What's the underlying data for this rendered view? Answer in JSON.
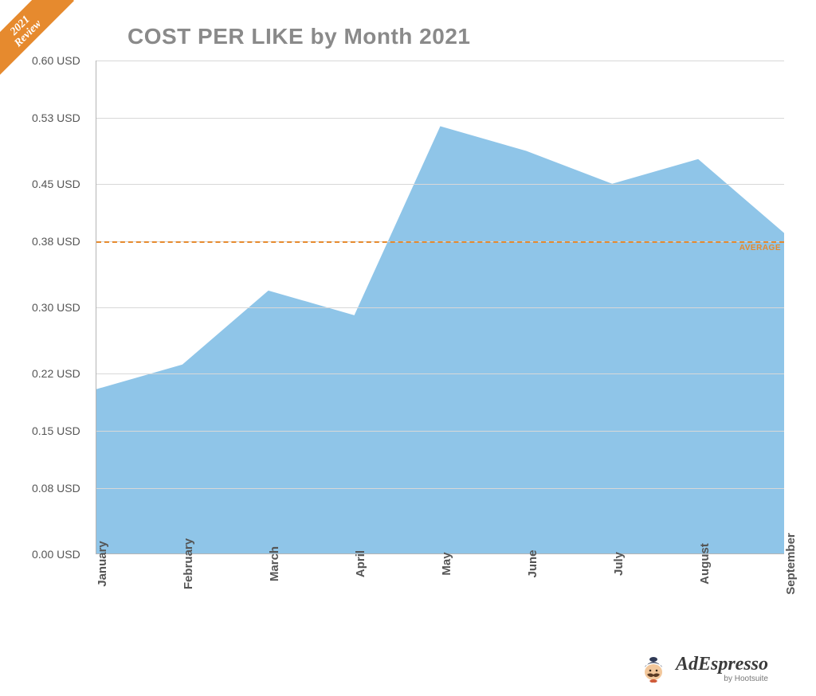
{
  "ribbon": {
    "line1": "2021",
    "line2": "Review",
    "bg": "#e68a2e",
    "color": "#ffffff"
  },
  "title": {
    "strong": "COST PER LIKE",
    "rest": " by Month 2021",
    "color": "#8a8a8a",
    "fontsize": 28
  },
  "chart": {
    "type": "area",
    "background_color": "#ffffff",
    "grid_color": "#d8d8d8",
    "axis_color": "#b5b5b5",
    "fill_color": "#8fc5e8",
    "fill_opacity": 1.0,
    "label_color": "#555555",
    "label_fontsize": 14,
    "xaxis_fontsize": 15,
    "xaxis_fontweight": 700,
    "categories": [
      "January",
      "February",
      "March",
      "April",
      "May",
      "June",
      "July",
      "August",
      "September"
    ],
    "values": [
      0.2,
      0.23,
      0.32,
      0.29,
      0.52,
      0.49,
      0.45,
      0.48,
      0.39
    ],
    "ylim": [
      0.0,
      0.6
    ],
    "yticks": [
      0.0,
      0.08,
      0.15,
      0.22,
      0.3,
      0.38,
      0.45,
      0.53,
      0.6
    ],
    "ytick_labels": [
      "0.00 USD",
      "0.08 USD",
      "0.15 USD",
      "0.22 USD",
      "0.30 USD",
      "0.38 USD",
      "0.45 USD",
      "0.53 USD",
      "0.60 USD"
    ],
    "average": {
      "value": 0.38,
      "label": "AVERAGE",
      "color": "#e68a2e",
      "dash": true
    }
  },
  "footer": {
    "brand": "AdEspresso",
    "byline": "by Hootsuite",
    "brand_color": "#3a3a3a",
    "mark_colors": {
      "hat": "#2f3a56",
      "face": "#f2c79b",
      "bow": "#cf5b3a",
      "moustache": "#5a3b24"
    }
  }
}
